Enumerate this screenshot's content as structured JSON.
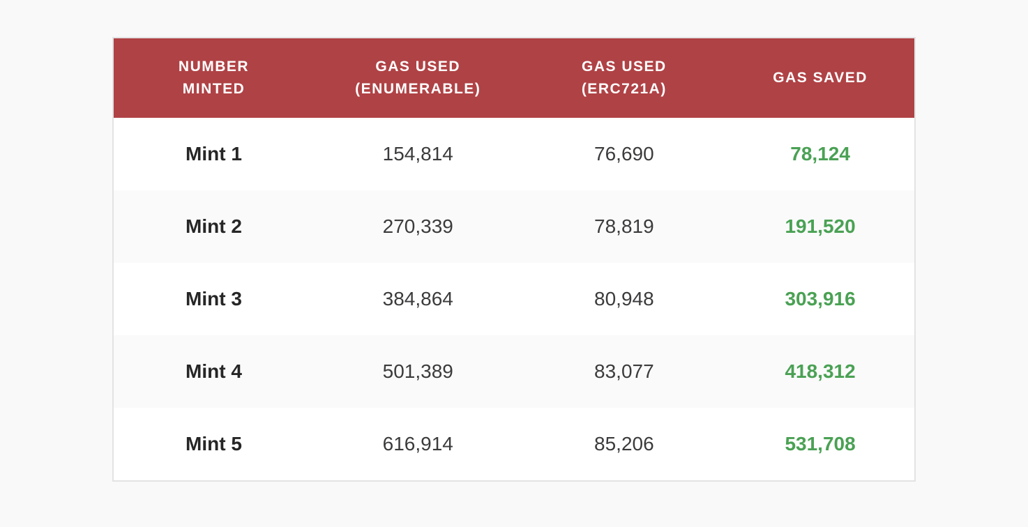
{
  "table": {
    "headers": [
      "NUMBER\nMINTED",
      "GAS USED\n(ENUMERABLE)",
      "GAS USED\n(ERC721A)",
      "GAS SAVED"
    ],
    "rows": [
      {
        "minted": "Mint 1",
        "gas_enumerable": "154,814",
        "gas_erc721a": "76,690",
        "gas_saved": "78,124"
      },
      {
        "minted": "Mint 2",
        "gas_enumerable": "270,339",
        "gas_erc721a": "78,819",
        "gas_saved": "191,520"
      },
      {
        "minted": "Mint 3",
        "gas_enumerable": "384,864",
        "gas_erc721a": "80,948",
        "gas_saved": "303,916"
      },
      {
        "minted": "Mint 4",
        "gas_enumerable": "501,389",
        "gas_erc721a": "83,077",
        "gas_saved": "418,312"
      },
      {
        "minted": "Mint 5",
        "gas_enumerable": "616,914",
        "gas_erc721a": "85,206",
        "gas_saved": "531,708"
      }
    ]
  },
  "colors": {
    "page_bg": "#F9F9F9",
    "header_bg": "#AF4245",
    "header_text": "#FFFFFF",
    "table_border": "#E3E3E3",
    "row_bg": "#FFFFFF",
    "row_alt_bg": "#FAFAFA",
    "text": "#3B3B3D",
    "label_text": "#262626",
    "saved_green": "#4AA154"
  },
  "chart_data": {
    "type": "table",
    "title": "",
    "columns": [
      "Number Minted",
      "Gas Used (Enumerable)",
      "Gas Used (ERC721A)",
      "Gas Saved"
    ],
    "rows": [
      [
        "Mint 1",
        154814,
        76690,
        78124
      ],
      [
        "Mint 2",
        270339,
        78819,
        191520
      ],
      [
        "Mint 3",
        384864,
        80948,
        303916
      ],
      [
        "Mint 4",
        501389,
        83077,
        418312
      ],
      [
        "Mint 5",
        616914,
        85206,
        531708
      ]
    ]
  }
}
